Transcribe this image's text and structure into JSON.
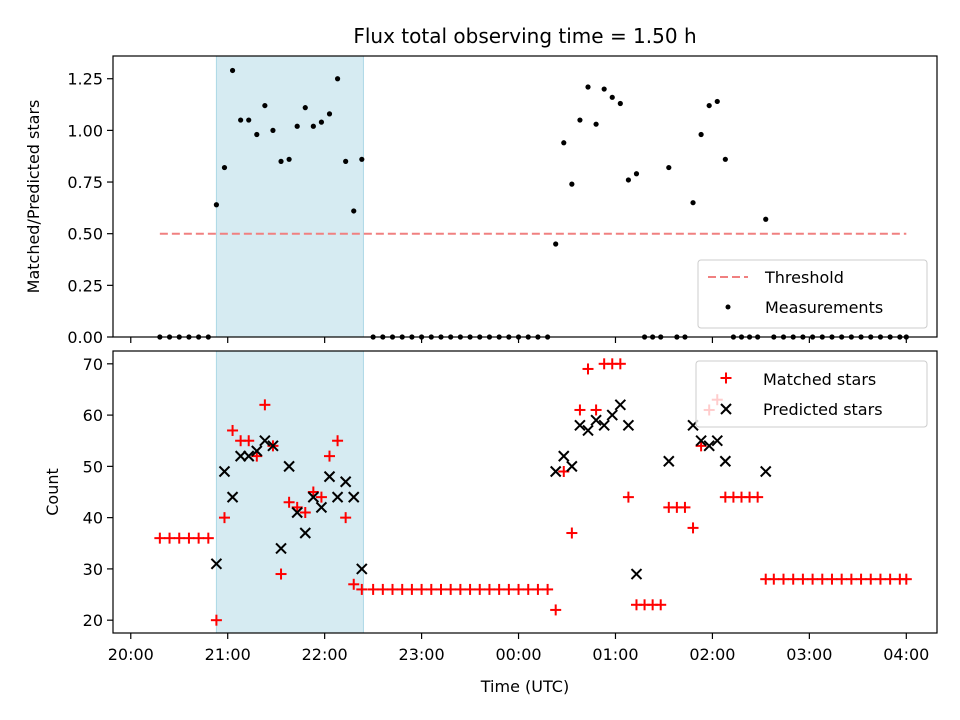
{
  "chart_data": [
    {
      "type": "scatter",
      "title": "Flux total observing time = 1.50 h",
      "xlabel": "",
      "ylabel": "Matched/Predicted stars",
      "xlim": [
        "20:00",
        "04:00"
      ],
      "ylim": [
        0,
        1.36
      ],
      "yticks": [
        "0.00",
        "0.25",
        "0.50",
        "0.75",
        "1.00",
        "1.25"
      ],
      "shaded_interval": {
        "start": "20:53",
        "end": "22:24",
        "color": "#add8e6"
      },
      "legend_position": "lower right",
      "legend": [
        {
          "label": "Threshold",
          "marker": "dashed-line",
          "color": "#f08080"
        },
        {
          "label": "Measurements",
          "marker": "dot",
          "color": "#000000"
        }
      ],
      "threshold": {
        "label": "Threshold",
        "y": 0.5,
        "x_start": "20:18",
        "x_end": "04:00"
      },
      "measurements": {
        "label": "Measurements",
        "points": [
          {
            "time": "20:18",
            "y": 0.0
          },
          {
            "time": "20:24",
            "y": 0.0
          },
          {
            "time": "20:30",
            "y": 0.0
          },
          {
            "time": "20:36",
            "y": 0.0
          },
          {
            "time": "20:42",
            "y": 0.0
          },
          {
            "time": "20:48",
            "y": 0.0
          },
          {
            "time": "20:53",
            "y": 0.64
          },
          {
            "time": "20:58",
            "y": 0.82
          },
          {
            "time": "21:03",
            "y": 1.29
          },
          {
            "time": "21:08",
            "y": 1.05
          },
          {
            "time": "21:13",
            "y": 1.05
          },
          {
            "time": "21:18",
            "y": 0.98
          },
          {
            "time": "21:23",
            "y": 1.12
          },
          {
            "time": "21:28",
            "y": 1.0
          },
          {
            "time": "21:33",
            "y": 0.85
          },
          {
            "time": "21:38",
            "y": 0.86
          },
          {
            "time": "21:43",
            "y": 1.02
          },
          {
            "time": "21:48",
            "y": 1.11
          },
          {
            "time": "21:53",
            "y": 1.02
          },
          {
            "time": "21:58",
            "y": 1.04
          },
          {
            "time": "22:03",
            "y": 1.08
          },
          {
            "time": "22:08",
            "y": 1.25
          },
          {
            "time": "22:13",
            "y": 0.85
          },
          {
            "time": "22:18",
            "y": 0.61
          },
          {
            "time": "22:23",
            "y": 0.86
          },
          {
            "time": "22:30",
            "y": 0.0
          },
          {
            "time": "22:36",
            "y": 0.0
          },
          {
            "time": "22:42",
            "y": 0.0
          },
          {
            "time": "22:48",
            "y": 0.0
          },
          {
            "time": "22:54",
            "y": 0.0
          },
          {
            "time": "23:00",
            "y": 0.0
          },
          {
            "time": "23:06",
            "y": 0.0
          },
          {
            "time": "23:12",
            "y": 0.0
          },
          {
            "time": "23:18",
            "y": 0.0
          },
          {
            "time": "23:24",
            "y": 0.0
          },
          {
            "time": "23:30",
            "y": 0.0
          },
          {
            "time": "23:36",
            "y": 0.0
          },
          {
            "time": "23:42",
            "y": 0.0
          },
          {
            "time": "23:48",
            "y": 0.0
          },
          {
            "time": "23:54",
            "y": 0.0
          },
          {
            "time": "00:00",
            "y": 0.0
          },
          {
            "time": "00:06",
            "y": 0.0
          },
          {
            "time": "00:12",
            "y": 0.0
          },
          {
            "time": "00:18",
            "y": 0.0
          },
          {
            "time": "00:23",
            "y": 0.45
          },
          {
            "time": "00:28",
            "y": 0.94
          },
          {
            "time": "00:33",
            "y": 0.74
          },
          {
            "time": "00:38",
            "y": 1.05
          },
          {
            "time": "00:43",
            "y": 1.21
          },
          {
            "time": "00:48",
            "y": 1.03
          },
          {
            "time": "00:53",
            "y": 1.2
          },
          {
            "time": "00:58",
            "y": 1.16
          },
          {
            "time": "01:03",
            "y": 1.13
          },
          {
            "time": "01:08",
            "y": 0.76
          },
          {
            "time": "01:13",
            "y": 0.79
          },
          {
            "time": "01:18",
            "y": 0.0
          },
          {
            "time": "01:23",
            "y": 0.0
          },
          {
            "time": "01:28",
            "y": 0.0
          },
          {
            "time": "01:33",
            "y": 0.82
          },
          {
            "time": "01:38",
            "y": 0.0
          },
          {
            "time": "01:43",
            "y": 0.0
          },
          {
            "time": "01:48",
            "y": 0.65
          },
          {
            "time": "01:53",
            "y": 0.98
          },
          {
            "time": "01:58",
            "y": 1.12
          },
          {
            "time": "02:03",
            "y": 1.14
          },
          {
            "time": "02:08",
            "y": 0.86
          },
          {
            "time": "02:13",
            "y": 0.0
          },
          {
            "time": "02:18",
            "y": 0.0
          },
          {
            "time": "02:23",
            "y": 0.0
          },
          {
            "time": "02:28",
            "y": 0.0
          },
          {
            "time": "02:33",
            "y": 0.57
          },
          {
            "time": "02:38",
            "y": 0.0
          },
          {
            "time": "02:44",
            "y": 0.0
          },
          {
            "time": "02:50",
            "y": 0.0
          },
          {
            "time": "02:56",
            "y": 0.0
          },
          {
            "time": "03:02",
            "y": 0.0
          },
          {
            "time": "03:08",
            "y": 0.0
          },
          {
            "time": "03:14",
            "y": 0.0
          },
          {
            "time": "03:20",
            "y": 0.0
          },
          {
            "time": "03:26",
            "y": 0.0
          },
          {
            "time": "03:32",
            "y": 0.0
          },
          {
            "time": "03:38",
            "y": 0.0
          },
          {
            "time": "03:44",
            "y": 0.0
          },
          {
            "time": "03:50",
            "y": 0.0
          },
          {
            "time": "03:56",
            "y": 0.0
          },
          {
            "time": "04:00",
            "y": 0.0
          }
        ]
      }
    },
    {
      "type": "scatter",
      "title": "",
      "xlabel": "Time (UTC)",
      "ylabel": "Count",
      "xlim": [
        "20:00",
        "04:00"
      ],
      "ylim": [
        17.5,
        72.5
      ],
      "xticks": [
        "20:00",
        "21:00",
        "22:00",
        "23:00",
        "00:00",
        "01:00",
        "02:00",
        "03:00",
        "04:00"
      ],
      "yticks": [
        "20",
        "30",
        "40",
        "50",
        "60",
        "70"
      ],
      "shaded_interval": {
        "start": "20:53",
        "end": "22:24",
        "color": "#add8e6"
      },
      "legend_position": "upper right",
      "legend": [
        {
          "label": "Matched stars",
          "marker": "+",
          "color": "#ff0000"
        },
        {
          "label": "Predicted stars",
          "marker": "x",
          "color": "#000000"
        }
      ],
      "series": [
        {
          "name": "Matched stars",
          "marker": "+",
          "color": "#ff0000",
          "points": [
            {
              "time": "20:18",
              "y": 36
            },
            {
              "time": "20:24",
              "y": 36
            },
            {
              "time": "20:30",
              "y": 36
            },
            {
              "time": "20:36",
              "y": 36
            },
            {
              "time": "20:42",
              "y": 36
            },
            {
              "time": "20:48",
              "y": 36
            },
            {
              "time": "20:53",
              "y": 20
            },
            {
              "time": "20:58",
              "y": 40
            },
            {
              "time": "21:03",
              "y": 57
            },
            {
              "time": "21:08",
              "y": 55
            },
            {
              "time": "21:13",
              "y": 55
            },
            {
              "time": "21:18",
              "y": 52
            },
            {
              "time": "21:23",
              "y": 62
            },
            {
              "time": "21:28",
              "y": 54
            },
            {
              "time": "21:33",
              "y": 29
            },
            {
              "time": "21:38",
              "y": 43
            },
            {
              "time": "21:43",
              "y": 42
            },
            {
              "time": "21:48",
              "y": 41
            },
            {
              "time": "21:53",
              "y": 45
            },
            {
              "time": "21:58",
              "y": 44
            },
            {
              "time": "22:03",
              "y": 52
            },
            {
              "time": "22:08",
              "y": 55
            },
            {
              "time": "22:13",
              "y": 40
            },
            {
              "time": "22:18",
              "y": 27
            },
            {
              "time": "22:23",
              "y": 26
            },
            {
              "time": "22:30",
              "y": 26
            },
            {
              "time": "22:36",
              "y": 26
            },
            {
              "time": "22:42",
              "y": 26
            },
            {
              "time": "22:48",
              "y": 26
            },
            {
              "time": "22:54",
              "y": 26
            },
            {
              "time": "23:00",
              "y": 26
            },
            {
              "time": "23:06",
              "y": 26
            },
            {
              "time": "23:12",
              "y": 26
            },
            {
              "time": "23:18",
              "y": 26
            },
            {
              "time": "23:24",
              "y": 26
            },
            {
              "time": "23:30",
              "y": 26
            },
            {
              "time": "23:36",
              "y": 26
            },
            {
              "time": "23:42",
              "y": 26
            },
            {
              "time": "23:48",
              "y": 26
            },
            {
              "time": "23:54",
              "y": 26
            },
            {
              "time": "00:00",
              "y": 26
            },
            {
              "time": "00:06",
              "y": 26
            },
            {
              "time": "00:12",
              "y": 26
            },
            {
              "time": "00:18",
              "y": 26
            },
            {
              "time": "00:23",
              "y": 22
            },
            {
              "time": "00:28",
              "y": 49
            },
            {
              "time": "00:33",
              "y": 37
            },
            {
              "time": "00:38",
              "y": 61
            },
            {
              "time": "00:43",
              "y": 69
            },
            {
              "time": "00:48",
              "y": 61
            },
            {
              "time": "00:53",
              "y": 70
            },
            {
              "time": "00:58",
              "y": 70
            },
            {
              "time": "01:03",
              "y": 70
            },
            {
              "time": "01:08",
              "y": 44
            },
            {
              "time": "01:13",
              "y": 23
            },
            {
              "time": "01:18",
              "y": 23
            },
            {
              "time": "01:23",
              "y": 23
            },
            {
              "time": "01:28",
              "y": 23
            },
            {
              "time": "01:33",
              "y": 42
            },
            {
              "time": "01:38",
              "y": 42
            },
            {
              "time": "01:43",
              "y": 42
            },
            {
              "time": "01:48",
              "y": 38
            },
            {
              "time": "01:53",
              "y": 54
            },
            {
              "time": "01:58",
              "y": 61
            },
            {
              "time": "02:03",
              "y": 63
            },
            {
              "time": "02:08",
              "y": 44
            },
            {
              "time": "02:13",
              "y": 44
            },
            {
              "time": "02:18",
              "y": 44
            },
            {
              "time": "02:23",
              "y": 44
            },
            {
              "time": "02:28",
              "y": 44
            },
            {
              "time": "02:33",
              "y": 28
            },
            {
              "time": "02:38",
              "y": 28
            },
            {
              "time": "02:44",
              "y": 28
            },
            {
              "time": "02:50",
              "y": 28
            },
            {
              "time": "02:56",
              "y": 28
            },
            {
              "time": "03:02",
              "y": 28
            },
            {
              "time": "03:08",
              "y": 28
            },
            {
              "time": "03:14",
              "y": 28
            },
            {
              "time": "03:20",
              "y": 28
            },
            {
              "time": "03:26",
              "y": 28
            },
            {
              "time": "03:32",
              "y": 28
            },
            {
              "time": "03:38",
              "y": 28
            },
            {
              "time": "03:44",
              "y": 28
            },
            {
              "time": "03:50",
              "y": 28
            },
            {
              "time": "03:56",
              "y": 28
            },
            {
              "time": "04:00",
              "y": 28
            }
          ]
        },
        {
          "name": "Predicted stars",
          "marker": "x",
          "color": "#000000",
          "points": [
            {
              "time": "20:53",
              "y": 31
            },
            {
              "time": "20:58",
              "y": 49
            },
            {
              "time": "21:03",
              "y": 44
            },
            {
              "time": "21:08",
              "y": 52
            },
            {
              "time": "21:13",
              "y": 52
            },
            {
              "time": "21:18",
              "y": 53
            },
            {
              "time": "21:23",
              "y": 55
            },
            {
              "time": "21:28",
              "y": 54
            },
            {
              "time": "21:33",
              "y": 34
            },
            {
              "time": "21:38",
              "y": 50
            },
            {
              "time": "21:43",
              "y": 41
            },
            {
              "time": "21:48",
              "y": 37
            },
            {
              "time": "21:53",
              "y": 44
            },
            {
              "time": "21:58",
              "y": 42
            },
            {
              "time": "22:03",
              "y": 48
            },
            {
              "time": "22:08",
              "y": 44
            },
            {
              "time": "22:13",
              "y": 47
            },
            {
              "time": "22:18",
              "y": 44
            },
            {
              "time": "22:23",
              "y": 30
            },
            {
              "time": "00:23",
              "y": 49
            },
            {
              "time": "00:28",
              "y": 52
            },
            {
              "time": "00:33",
              "y": 50
            },
            {
              "time": "00:38",
              "y": 58
            },
            {
              "time": "00:43",
              "y": 57
            },
            {
              "time": "00:48",
              "y": 59
            },
            {
              "time": "00:53",
              "y": 58
            },
            {
              "time": "00:58",
              "y": 60
            },
            {
              "time": "01:03",
              "y": 62
            },
            {
              "time": "01:08",
              "y": 58
            },
            {
              "time": "01:13",
              "y": 29
            },
            {
              "time": "01:33",
              "y": 51
            },
            {
              "time": "01:48",
              "y": 58
            },
            {
              "time": "01:53",
              "y": 55
            },
            {
              "time": "01:58",
              "y": 54
            },
            {
              "time": "02:03",
              "y": 55
            },
            {
              "time": "02:08",
              "y": 51
            },
            {
              "time": "02:33",
              "y": 49
            }
          ]
        }
      ]
    }
  ]
}
